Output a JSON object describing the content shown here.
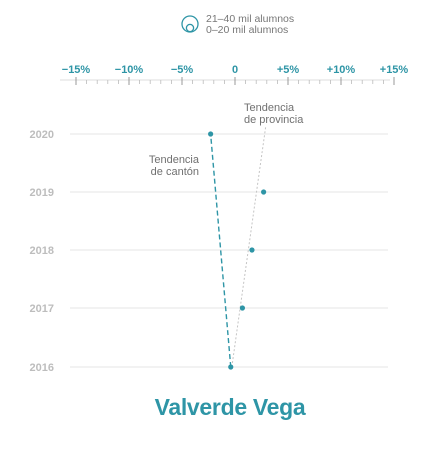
{
  "legend": {
    "items": [
      {
        "label": "21–40 mil alumnos",
        "symbol": "outer-circle"
      },
      {
        "label": "0–20 mil alumnos",
        "symbol": "inner-circle"
      }
    ]
  },
  "colors": {
    "accent": "#2e95a6",
    "tick_label": "#2e95a6",
    "year_label": "#bdbdbd",
    "annotation": "#707070",
    "grid": "#e6e6e6",
    "trend_province": "#c4c4c4",
    "title": "#2e95a6"
  },
  "chart_data": {
    "type": "scatter",
    "title": "Valverde Vega",
    "x_tick_labels": [
      "−15%",
      "−10%",
      "−5%",
      "0",
      "+5%",
      "+10%",
      "+15%"
    ],
    "x_ticks": [
      -15,
      -10,
      -5,
      0,
      5,
      10,
      15
    ],
    "xlim": [
      -15,
      15
    ],
    "categories": [
      "2020",
      "2019",
      "2018",
      "2017",
      "2016"
    ],
    "series": [
      {
        "name": "Valverde Vega",
        "points": [
          {
            "year": "2020",
            "value": -2.3
          },
          {
            "year": "2019",
            "value": 2.7
          },
          {
            "year": "2018",
            "value": 1.6
          },
          {
            "year": "2017",
            "value": 0.7
          },
          {
            "year": "2016",
            "value": -0.4
          }
        ]
      }
    ],
    "trend_lines": [
      {
        "label_lines": [
          "Tendencia",
          "de cantón"
        ],
        "from": {
          "year": "2016",
          "value": -0.4
        },
        "to": {
          "year": "2020",
          "value": -2.3
        },
        "style": "dashed"
      },
      {
        "label_lines": [
          "Tendencia",
          "de provincia"
        ],
        "from": {
          "year": "2016",
          "value": -0.3
        },
        "to": {
          "year": "2020",
          "value": 2.8
        },
        "style": "dotted"
      }
    ],
    "grid": true
  }
}
